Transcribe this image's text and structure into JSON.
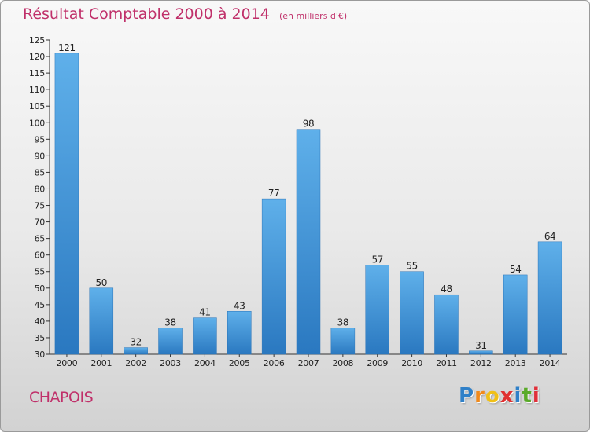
{
  "chart_data": {
    "type": "bar",
    "title": "Résultat Comptable 2000 à 2014",
    "subtitle": "(en milliers d'€)",
    "categories": [
      "2000",
      "2001",
      "2002",
      "2003",
      "2004",
      "2005",
      "2006",
      "2007",
      "2008",
      "2009",
      "2010",
      "2011",
      "2012",
      "2013",
      "2014"
    ],
    "values": [
      121,
      50,
      32,
      38,
      41,
      43,
      77,
      98,
      38,
      57,
      55,
      48,
      31,
      54,
      64
    ],
    "ylim": [
      30,
      125
    ],
    "yticks": [
      30,
      35,
      40,
      45,
      50,
      55,
      60,
      65,
      70,
      75,
      80,
      85,
      90,
      95,
      100,
      105,
      110,
      115,
      120,
      125
    ],
    "xlabel": "",
    "ylabel": "",
    "grid": false,
    "bar_color": "#3a8fd4"
  },
  "commune": "CHAPOIS",
  "logo": {
    "letters": [
      "P",
      "r",
      "o",
      "x",
      "i",
      "t",
      "i"
    ],
    "colors": [
      "#2f80c8",
      "#f08a1c",
      "#f0c018",
      "#e03030",
      "#2f80c8",
      "#5aaa2a",
      "#e0303a"
    ]
  }
}
